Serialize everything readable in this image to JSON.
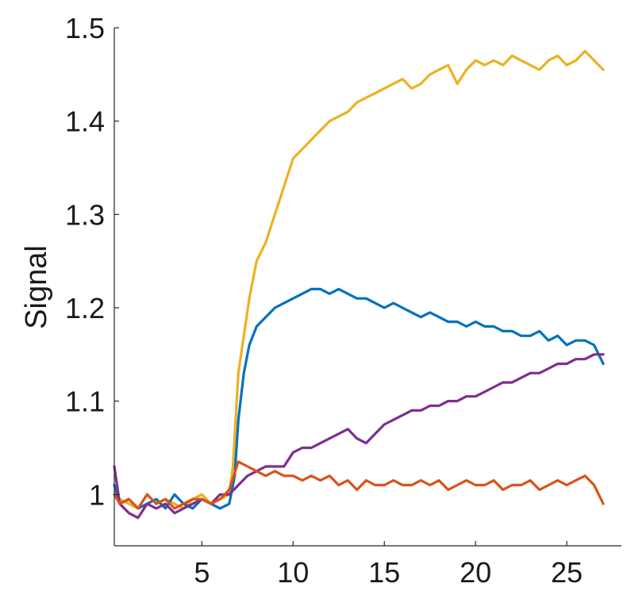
{
  "chart_data": {
    "type": "line",
    "xlabel": "",
    "ylabel": "Signal",
    "xlim": [
      0.2,
      28.0
    ],
    "ylim": [
      0.945,
      1.5
    ],
    "xticks": [
      5,
      10,
      15,
      20,
      25
    ],
    "yticks": [
      1,
      1.1,
      1.2,
      1.3,
      1.4,
      1.5
    ],
    "ytick_labels": [
      "1",
      "1.1",
      "1.2",
      "1.3",
      "1.4",
      "1.5"
    ],
    "grid": false,
    "colors": {
      "yellow": "#EDB120",
      "blue": "#0072BD",
      "purple": "#7E2F8E",
      "orange": "#D95319"
    },
    "series": [
      {
        "color": "yellow",
        "x": [
          0.2,
          0.5,
          1.0,
          1.5,
          2.0,
          2.5,
          3.0,
          3.5,
          4.0,
          4.5,
          5.0,
          5.5,
          6.0,
          6.5,
          6.7,
          7.0,
          7.3,
          7.6,
          8.0,
          8.5,
          9.0,
          9.5,
          10.0,
          10.5,
          11.0,
          11.5,
          12.0,
          12.5,
          13.0,
          13.5,
          14.0,
          14.5,
          15.0,
          15.5,
          16.0,
          16.5,
          17.0,
          17.5,
          18.0,
          18.5,
          19.0,
          19.5,
          20.0,
          20.5,
          21.0,
          21.5,
          22.0,
          22.5,
          23.0,
          23.5,
          24.0,
          24.5,
          25.0,
          25.5,
          26.0,
          26.5,
          27.0
        ],
        "y": [
          1.0,
          0.995,
          0.99,
          0.985,
          1.0,
          0.99,
          0.995,
          0.99,
          0.985,
          0.995,
          1.0,
          0.99,
          0.995,
          1.0,
          1.03,
          1.13,
          1.17,
          1.21,
          1.25,
          1.27,
          1.3,
          1.33,
          1.36,
          1.37,
          1.38,
          1.39,
          1.4,
          1.405,
          1.41,
          1.42,
          1.425,
          1.43,
          1.435,
          1.44,
          1.445,
          1.435,
          1.44,
          1.45,
          1.455,
          1.46,
          1.44,
          1.455,
          1.465,
          1.46,
          1.465,
          1.46,
          1.47,
          1.465,
          1.46,
          1.455,
          1.465,
          1.47,
          1.46,
          1.465,
          1.475,
          1.465,
          1.455
        ]
      },
      {
        "color": "blue",
        "x": [
          0.2,
          0.5,
          1.0,
          1.5,
          2.0,
          2.5,
          3.0,
          3.5,
          4.0,
          4.5,
          5.0,
          5.5,
          6.0,
          6.5,
          6.8,
          7.0,
          7.3,
          7.6,
          8.0,
          8.5,
          9.0,
          9.5,
          10.0,
          10.5,
          11.0,
          11.5,
          12.0,
          12.5,
          13.0,
          13.5,
          14.0,
          14.5,
          15.0,
          15.5,
          16.0,
          16.5,
          17.0,
          17.5,
          18.0,
          18.5,
          19.0,
          19.5,
          20.0,
          20.5,
          21.0,
          21.5,
          22.0,
          22.5,
          23.0,
          23.5,
          24.0,
          24.5,
          25.0,
          25.5,
          26.0,
          26.5,
          27.0
        ],
        "y": [
          1.01,
          0.99,
          0.995,
          0.985,
          0.99,
          0.995,
          0.985,
          1.0,
          0.99,
          0.985,
          0.995,
          0.99,
          0.985,
          0.99,
          1.02,
          1.08,
          1.13,
          1.16,
          1.18,
          1.19,
          1.2,
          1.205,
          1.21,
          1.215,
          1.22,
          1.22,
          1.215,
          1.22,
          1.215,
          1.21,
          1.21,
          1.205,
          1.2,
          1.205,
          1.2,
          1.195,
          1.19,
          1.195,
          1.19,
          1.185,
          1.185,
          1.18,
          1.185,
          1.18,
          1.18,
          1.175,
          1.175,
          1.17,
          1.17,
          1.175,
          1.165,
          1.17,
          1.16,
          1.165,
          1.165,
          1.16,
          1.14
        ]
      },
      {
        "color": "purple",
        "x": [
          0.2,
          0.5,
          1.0,
          1.5,
          2.0,
          2.5,
          3.0,
          3.5,
          4.0,
          4.5,
          5.0,
          5.5,
          6.0,
          6.5,
          7.0,
          7.5,
          8.0,
          8.5,
          9.0,
          9.5,
          10.0,
          10.5,
          11.0,
          11.5,
          12.0,
          12.5,
          13.0,
          13.5,
          14.0,
          14.5,
          15.0,
          15.5,
          16.0,
          16.5,
          17.0,
          17.5,
          18.0,
          18.5,
          19.0,
          19.5,
          20.0,
          20.5,
          21.0,
          21.5,
          22.0,
          22.5,
          23.0,
          23.5,
          24.0,
          24.5,
          25.0,
          25.5,
          26.0,
          26.5,
          27.0
        ],
        "y": [
          1.03,
          0.99,
          0.98,
          0.975,
          0.99,
          0.985,
          0.99,
          0.98,
          0.985,
          0.99,
          0.995,
          0.99,
          1.0,
          1.0,
          1.01,
          1.02,
          1.025,
          1.03,
          1.03,
          1.03,
          1.045,
          1.05,
          1.05,
          1.055,
          1.06,
          1.065,
          1.07,
          1.06,
          1.055,
          1.065,
          1.075,
          1.08,
          1.085,
          1.09,
          1.09,
          1.095,
          1.095,
          1.1,
          1.1,
          1.105,
          1.105,
          1.11,
          1.115,
          1.12,
          1.12,
          1.125,
          1.13,
          1.13,
          1.135,
          1.14,
          1.14,
          1.145,
          1.145,
          1.15,
          1.15
        ]
      },
      {
        "color": "orange",
        "x": [
          0.2,
          0.5,
          1.0,
          1.5,
          2.0,
          2.5,
          3.0,
          3.5,
          4.0,
          4.5,
          5.0,
          5.5,
          6.0,
          6.5,
          7.0,
          7.5,
          8.0,
          8.5,
          9.0,
          9.5,
          10.0,
          10.5,
          11.0,
          11.5,
          12.0,
          12.5,
          13.0,
          13.5,
          14.0,
          14.5,
          15.0,
          15.5,
          16.0,
          16.5,
          17.0,
          17.5,
          18.0,
          18.5,
          19.0,
          19.5,
          20.0,
          20.5,
          21.0,
          21.5,
          22.0,
          22.5,
          23.0,
          23.5,
          24.0,
          24.5,
          25.0,
          25.5,
          26.0,
          26.5,
          27.0
        ],
        "y": [
          1.0,
          0.99,
          0.995,
          0.985,
          1.0,
          0.99,
          0.995,
          0.985,
          0.99,
          0.995,
          0.995,
          0.99,
          0.995,
          1.005,
          1.035,
          1.03,
          1.025,
          1.02,
          1.025,
          1.02,
          1.02,
          1.015,
          1.02,
          1.015,
          1.02,
          1.01,
          1.015,
          1.005,
          1.015,
          1.01,
          1.01,
          1.015,
          1.01,
          1.01,
          1.015,
          1.01,
          1.015,
          1.005,
          1.01,
          1.015,
          1.01,
          1.01,
          1.015,
          1.005,
          1.01,
          1.01,
          1.015,
          1.005,
          1.01,
          1.015,
          1.01,
          1.015,
          1.02,
          1.01,
          0.99
        ]
      }
    ]
  }
}
